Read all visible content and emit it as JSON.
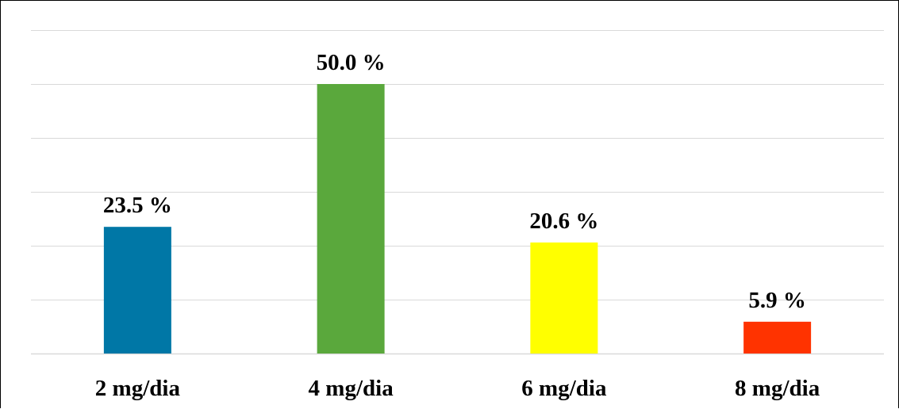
{
  "chart_data": {
    "type": "bar",
    "categories": [
      "2 mg/dia",
      "4 mg/dia",
      "6 mg/dia",
      "8 mg/dia"
    ],
    "values": [
      23.5,
      50.0,
      20.6,
      5.9
    ],
    "data_labels": [
      "23.5 %",
      "50.0 %",
      "20.6 %",
      "5.9 %"
    ],
    "colors": [
      "#0077a6",
      "#5aa83c",
      "#ffff00",
      "#ff3300"
    ],
    "title": "",
    "xlabel": "",
    "ylabel": "",
    "unit": "%",
    "ylim": [
      0,
      60
    ],
    "grid": true,
    "legend": "none"
  }
}
